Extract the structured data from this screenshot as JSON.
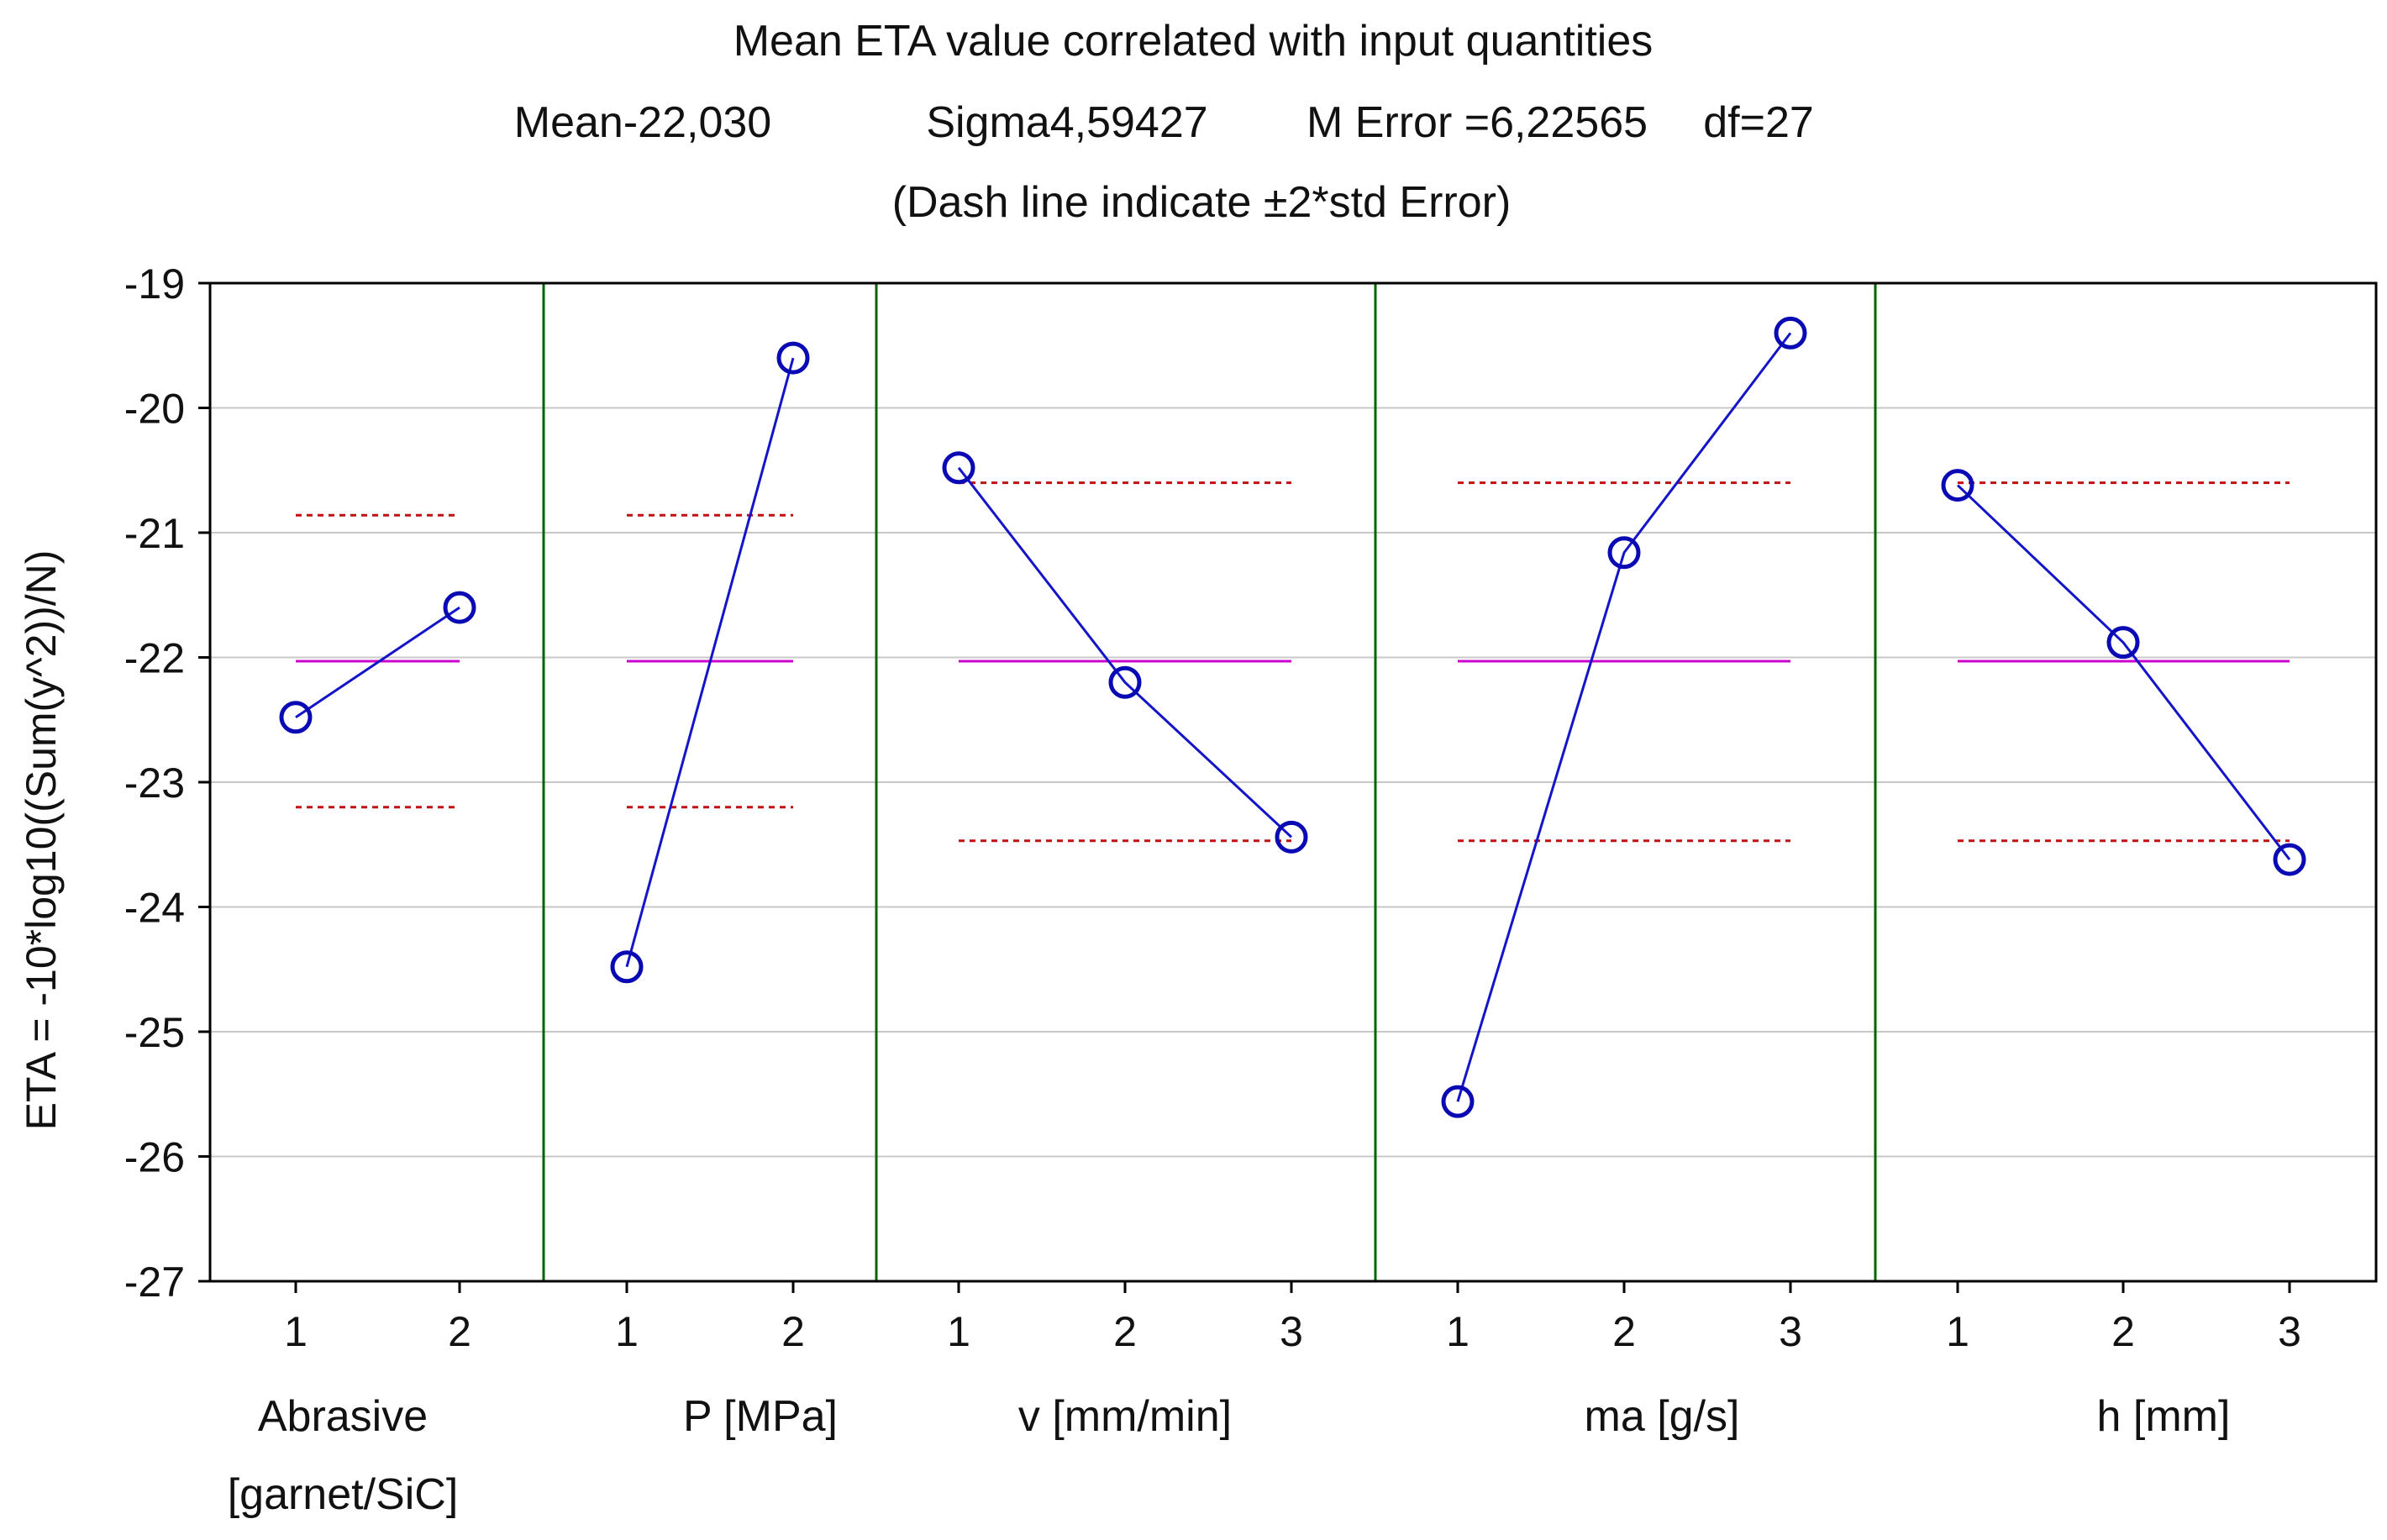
{
  "chart_data": {
    "type": "line",
    "title": "Mean ETA value correlated with input quantities",
    "subtitle_parts": [
      "Mean-22,030",
      "Sigma4,59427",
      "M Error =6,22565",
      "df=27"
    ],
    "note": "(Dash line indicate ±2*std Error)",
    "ylabel": "ETA = -10*log10((Sum(y^2))/N)",
    "ylim": [
      -27,
      -19
    ],
    "yticks": [
      -19,
      -20,
      -21,
      -22,
      -23,
      -24,
      -25,
      -26,
      -27
    ],
    "grid": true,
    "mean": -22.03,
    "colors": {
      "line": "#1414c8",
      "marker": "#0a0ab4",
      "mean": "#cc00cc",
      "limit": "#c01010",
      "divider": "#006400",
      "grid": "#c8c8c8"
    },
    "factors": [
      {
        "name": "Abrasive [garnet/SiC]",
        "label_lines": [
          "Abrasive",
          "[garnet/SiC]"
        ],
        "levels": [
          "1",
          "2"
        ],
        "values": [
          -22.48,
          -21.6
        ],
        "upper": -20.86,
        "lower": -23.2
      },
      {
        "name": "P [MPa]",
        "label_lines": [
          "P [MPa]"
        ],
        "levels": [
          "1",
          "2"
        ],
        "values": [
          -24.48,
          -19.6
        ],
        "upper": -20.86,
        "lower": -23.2
      },
      {
        "name": "v [mm/min]",
        "label_lines": [
          "v [mm/min]"
        ],
        "levels": [
          "1",
          "2",
          "3"
        ],
        "values": [
          -20.48,
          -22.2,
          -23.44
        ],
        "upper": -20.6,
        "lower": -23.47
      },
      {
        "name": "ma [g/s]",
        "label_lines": [
          "ma [g/s]"
        ],
        "levels": [
          "1",
          "2",
          "3"
        ],
        "values": [
          -25.56,
          -21.16,
          -19.4
        ],
        "upper": -20.6,
        "lower": -23.47
      },
      {
        "name": "h [mm]",
        "label_lines": [
          "h [mm]"
        ],
        "levels": [
          "1",
          "2",
          "3"
        ],
        "values": [
          -20.62,
          -21.88,
          -23.62
        ],
        "upper": -20.6,
        "lower": -23.47
      }
    ]
  }
}
